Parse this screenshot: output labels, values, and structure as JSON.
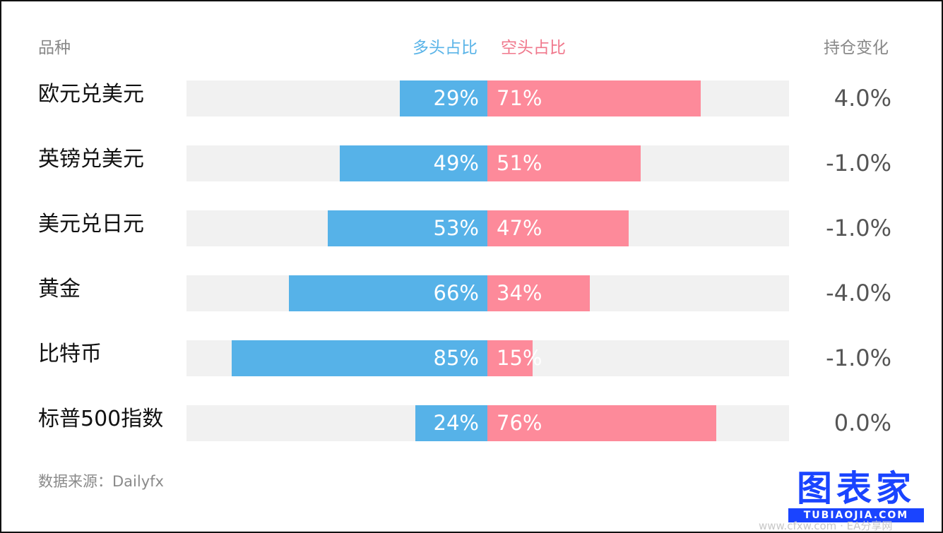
{
  "header": {
    "category": "品种",
    "long": "多头占比",
    "short": "空头占比",
    "change": "持仓变化"
  },
  "chart_data": {
    "type": "bar",
    "categories": [
      "欧元兑美元",
      "英镑兑美元",
      "美元兑日元",
      "黄金",
      "比特币",
      "标普500指数"
    ],
    "series": [
      {
        "name": "多头占比",
        "values": [
          29,
          49,
          53,
          66,
          85,
          24
        ]
      },
      {
        "name": "空头占比",
        "values": [
          71,
          51,
          47,
          34,
          15,
          76
        ]
      }
    ],
    "data_labels": {
      "long": [
        "29%",
        "49%",
        "53%",
        "66%",
        "85%",
        "24%"
      ],
      "short": [
        "71%",
        "51%",
        "47%",
        "34%",
        "15%",
        "76%"
      ]
    },
    "position_change": [
      "4.0%",
      "-1.0%",
      "-1.0%",
      "-4.0%",
      "-1.0%",
      "0.0%"
    ],
    "colors": {
      "long": "#56b2e8",
      "short": "#fd8a9a",
      "track": "#f1f1f1"
    },
    "xlim": [
      -100,
      100
    ]
  },
  "footer": {
    "source": "数据来源：Dailyfx"
  },
  "watermark": {
    "logo": "图表家",
    "sub": "TUBIAOJIA.COM",
    "site": "www.cfxw.com · EA分享网"
  }
}
